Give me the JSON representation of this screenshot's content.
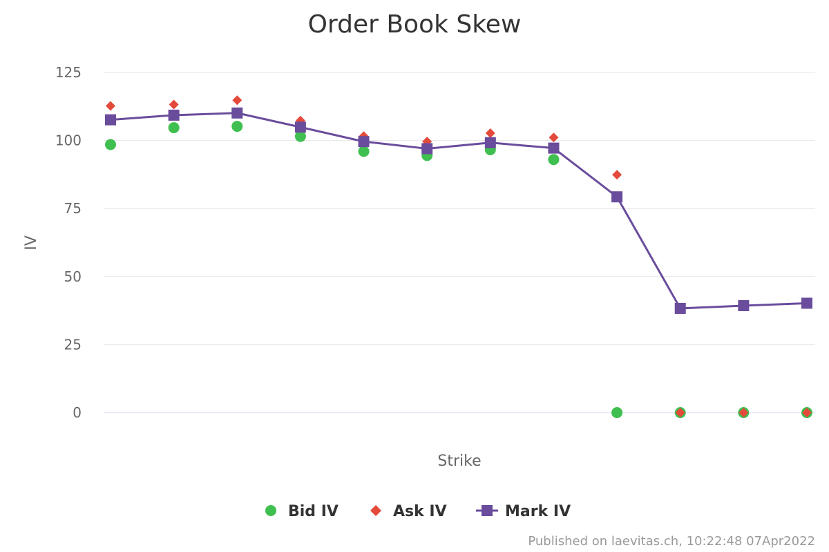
{
  "chart_data": {
    "type": "line",
    "title": "Order Book Skew",
    "xlabel": "Strike",
    "ylabel": "IV",
    "ylim": [
      0,
      125
    ],
    "yticks": [
      "0",
      "25",
      "50",
      "75",
      "100",
      "125"
    ],
    "grid": true,
    "legend_position": "bottom-center",
    "series": [
      {
        "name": "Bid IV",
        "marker": "circle",
        "line": false,
        "color": "#3fbf50",
        "values": [
          98.5,
          104.7,
          105.2,
          101.5,
          96.0,
          94.5,
          96.6,
          93.0,
          0,
          0,
          0,
          0
        ]
      },
      {
        "name": "Ask IV",
        "marker": "diamond",
        "line": false,
        "color": "#e34a3b",
        "values": [
          112.7,
          113.2,
          114.8,
          107.3,
          101.6,
          99.6,
          102.7,
          101.1,
          87.4,
          0,
          0,
          0
        ]
      },
      {
        "name": "Mark IV",
        "marker": "square",
        "line": true,
        "color": "#6a4c9c",
        "values": [
          107.6,
          109.3,
          110.1,
          104.9,
          99.6,
          97.0,
          99.2,
          97.2,
          79.3,
          38.3,
          39.3,
          40.2
        ]
      }
    ]
  },
  "credit": "Published on laevitas.ch, 10:22:48 07Apr2022"
}
